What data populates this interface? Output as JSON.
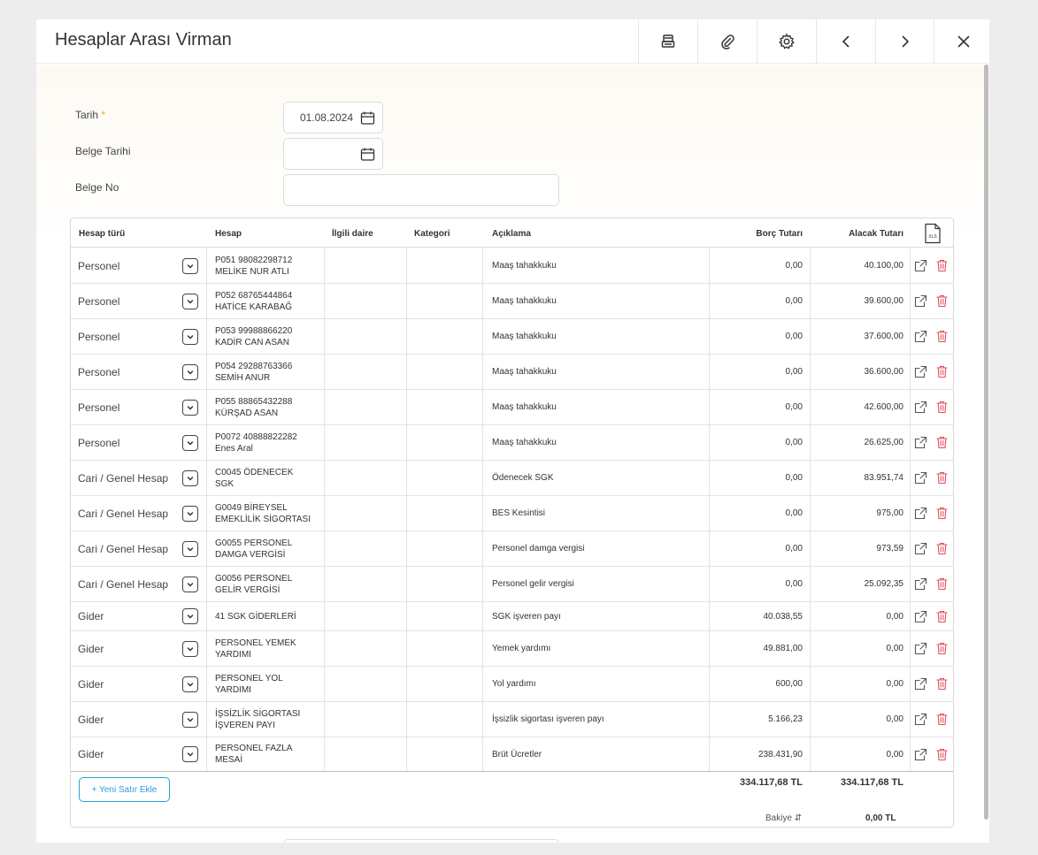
{
  "window": {
    "title": "Hesaplar Arası Virman"
  },
  "form": {
    "tarih_label": "Tarih",
    "required_mark": "*",
    "tarih_value": "01.08.2024",
    "belge_tarihi_label": "Belge Tarihi",
    "belge_tarihi_value": "",
    "belge_no_label": "Belge No",
    "belge_no_value": ""
  },
  "table": {
    "columns": {
      "type": "Hesap türü",
      "hesap": "Hesap",
      "ilgili_daire": "İlgili daire",
      "kategori": "Kategori",
      "aciklama": "Açıklama",
      "borc": "Borç Tutarı",
      "alacak": "Alacak Tutarı"
    },
    "export_label": "XLS",
    "rows": [
      {
        "type": "Personel",
        "hesap1": "P051 98082298712",
        "hesap2": "MELİKE NUR ATLI",
        "ilgili": "",
        "kategori": "",
        "aciklama": "Maaş tahakkuku",
        "borc": "0,00",
        "alacak": "40.100,00"
      },
      {
        "type": "Personel",
        "hesap1": "P052 68765444864",
        "hesap2": "HATİCE KARABAĞ",
        "ilgili": "",
        "kategori": "",
        "aciklama": "Maaş tahakkuku",
        "borc": "0,00",
        "alacak": "39.600,00"
      },
      {
        "type": "Personel",
        "hesap1": "P053 99988866220",
        "hesap2": "KADİR CAN ASAN",
        "ilgili": "",
        "kategori": "",
        "aciklama": "Maaş tahakkuku",
        "borc": "0,00",
        "alacak": "37.600,00"
      },
      {
        "type": "Personel",
        "hesap1": "P054 29288763366",
        "hesap2": "SEMİH ANUR",
        "ilgili": "",
        "kategori": "",
        "aciklama": "Maaş tahakkuku",
        "borc": "0,00",
        "alacak": "36.600,00"
      },
      {
        "type": "Personel",
        "hesap1": "P055 88865432288",
        "hesap2": "KÜRŞAD ASAN",
        "ilgili": "",
        "kategori": "",
        "aciklama": "Maaş tahakkuku",
        "borc": "0,00",
        "alacak": "42.600,00"
      },
      {
        "type": "Personel",
        "hesap1": "P0072 40888822282",
        "hesap2": "Enes Aral",
        "ilgili": "",
        "kategori": "",
        "aciklama": "Maaş tahakkuku",
        "borc": "0,00",
        "alacak": "26.625,00"
      },
      {
        "type": "Cari / Genel Hesap",
        "hesap1": "C0045 ÖDENECEK",
        "hesap2": "SGK",
        "ilgili": "",
        "kategori": "",
        "aciklama": "Ödenecek SGK",
        "borc": "0,00",
        "alacak": "83.951,74"
      },
      {
        "type": "Cari / Genel Hesap",
        "hesap1": "G0049 BİREYSEL",
        "hesap2": "EMEKLİLİK SİGORTASI",
        "ilgili": "",
        "kategori": "",
        "aciklama": "BES Kesintisi",
        "borc": "0,00",
        "alacak": "975,00"
      },
      {
        "type": "Cari / Genel Hesap",
        "hesap1": "G0055 PERSONEL",
        "hesap2": "DAMGA VERGİSİ",
        "ilgili": "",
        "kategori": "",
        "aciklama": "Personel damga vergisi",
        "borc": "0,00",
        "alacak": "973,59"
      },
      {
        "type": "Cari / Genel Hesap",
        "hesap1": "G0056 PERSONEL",
        "hesap2": "GELİR VERGİSİ",
        "ilgili": "",
        "kategori": "",
        "aciklama": "Personel gelir vergisi",
        "borc": "0,00",
        "alacak": "25.092,35"
      },
      {
        "type": "Gider",
        "hesap1": "41 SGK GİDERLERİ",
        "hesap2": "",
        "ilgili": "",
        "kategori": "",
        "aciklama": "SGK işveren payı",
        "borc": "40.038,55",
        "alacak": "0,00"
      },
      {
        "type": "Gider",
        "hesap1": "PERSONEL YEMEK",
        "hesap2": "YARDIMI",
        "ilgili": "",
        "kategori": "",
        "aciklama": "Yemek yardımı",
        "borc": "49.881,00",
        "alacak": "0,00"
      },
      {
        "type": "Gider",
        "hesap1": "PERSONEL YOL",
        "hesap2": "YARDIMI",
        "ilgili": "",
        "kategori": "",
        "aciklama": "Yol yardımı",
        "borc": "600,00",
        "alacak": "0,00"
      },
      {
        "type": "Gider",
        "hesap1": "İŞSİZLİK SİGORTASI",
        "hesap2": "İŞVEREN PAYI",
        "ilgili": "",
        "kategori": "",
        "aciklama": "İşsizlik sigortası işveren payı",
        "borc": "5.166,23",
        "alacak": "0,00"
      },
      {
        "type": "Gider",
        "hesap1": "PERSONEL FAZLA",
        "hesap2": "MESAİ",
        "ilgili": "",
        "kategori": "",
        "aciklama": "Brüt Ücretler",
        "borc": "238.431,90",
        "alacak": "0,00"
      }
    ],
    "add_row_label": "+ Yeni Satır Ekle",
    "total_borc": "334.117,68 TL",
    "total_alacak": "334.117,68 TL",
    "bakiye_label": "Bakiye",
    "bakiye_value": "0,00 TL"
  },
  "icons": {
    "print": "printer-icon",
    "attach": "paperclip-icon",
    "settings": "gear-icon",
    "prev": "chevron-left-icon",
    "next": "chevron-right-icon",
    "close": "close-icon",
    "row_edit": "external-link-icon",
    "row_delete": "trash-icon",
    "row_dropdown": "chevron-down-icon",
    "calendar": "calendar-icon",
    "export": "xls-file-icon"
  },
  "colors": {
    "accent": "#2b9fd8",
    "delete": "#e0505a",
    "required": "#f0a030"
  }
}
